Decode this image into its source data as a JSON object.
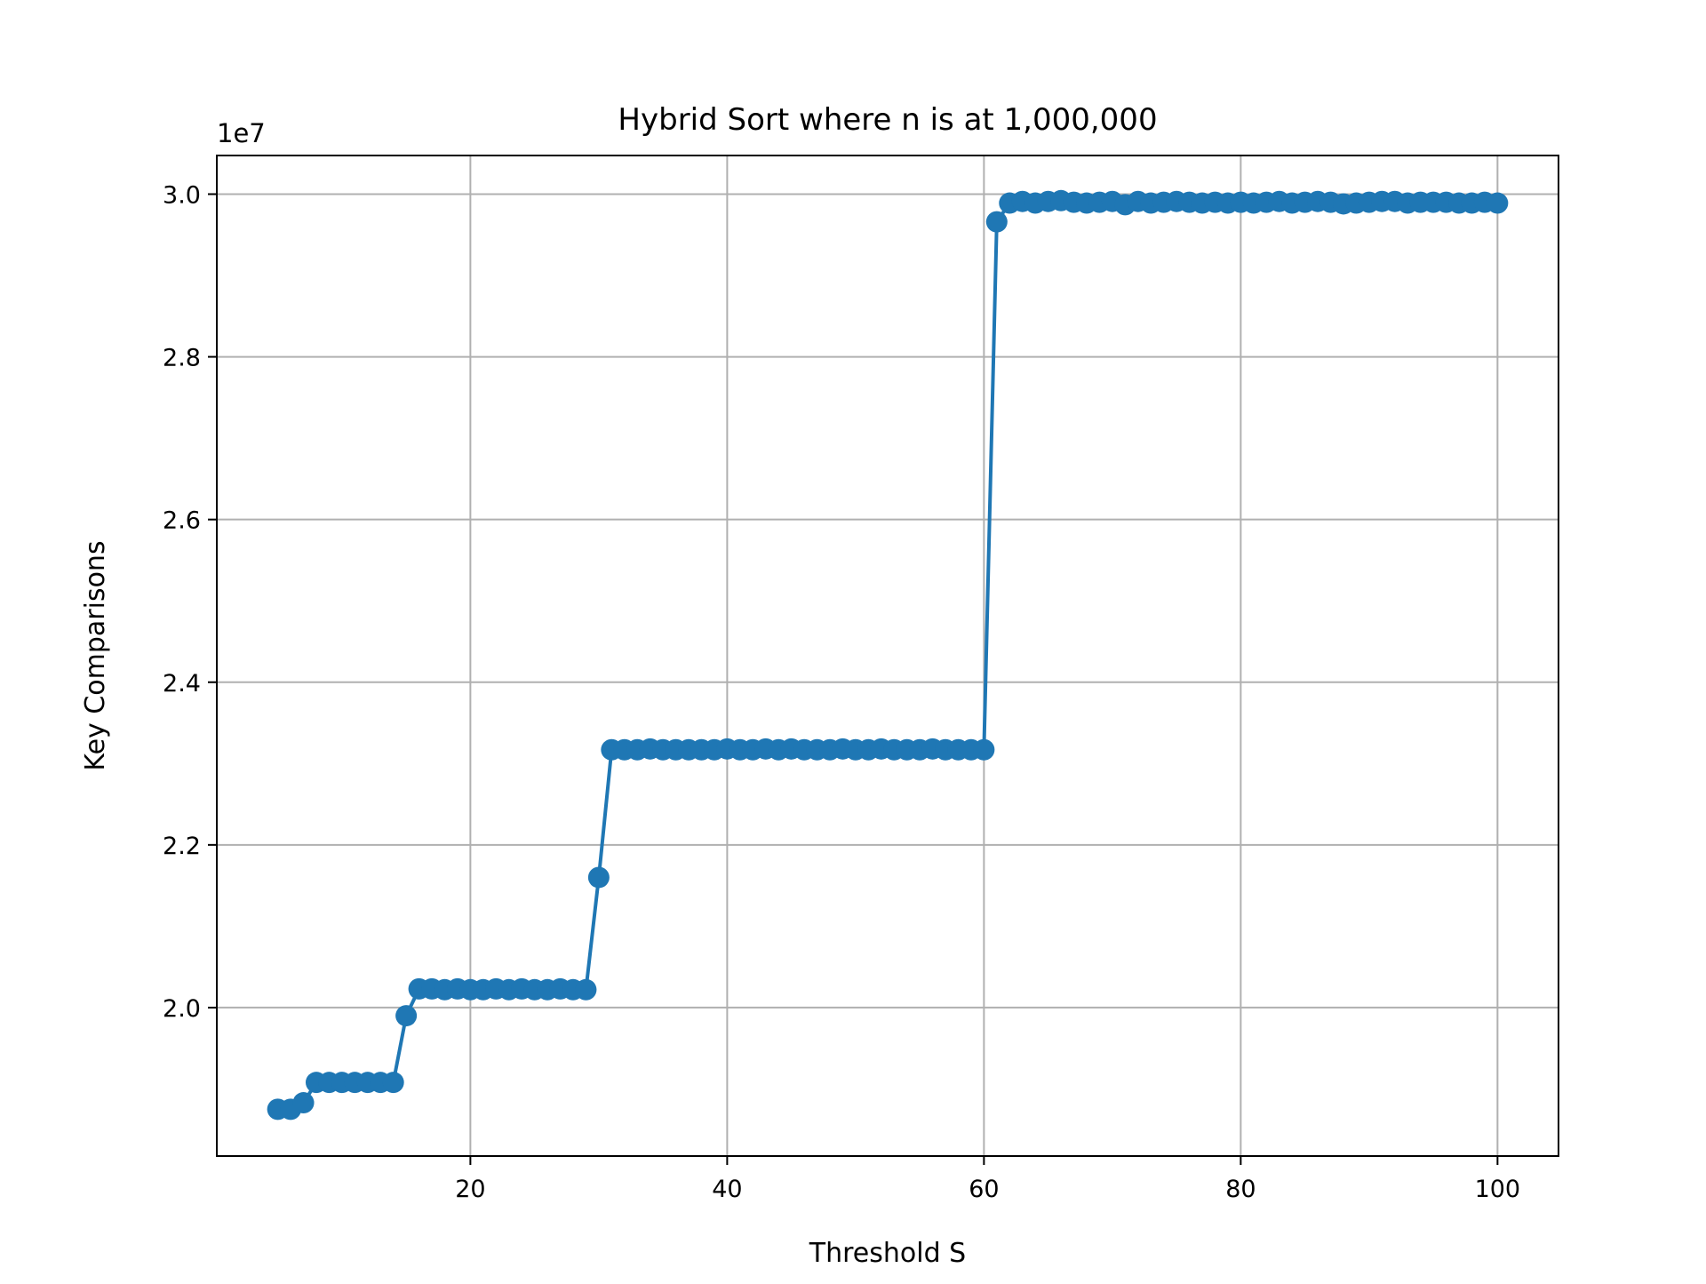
{
  "chart_data": {
    "type": "line",
    "title": "Hybrid Sort where n is at 1,000,000",
    "xlabel": "Threshold S",
    "ylabel": "Key Comparisons",
    "y_offset_label": "1e7",
    "xlim": [
      0.25,
      104.75
    ],
    "ylim": [
      18175000,
      30475000
    ],
    "x_ticks": [
      20,
      40,
      60,
      80,
      100
    ],
    "x_tick_labels": [
      "20",
      "40",
      "60",
      "80",
      "100"
    ],
    "y_ticks": [
      20000000,
      22000000,
      24000000,
      26000000,
      28000000,
      30000000
    ],
    "y_tick_labels": [
      "2.0",
      "2.2",
      "2.4",
      "2.6",
      "2.8",
      "3.0"
    ],
    "grid": true,
    "colors": {
      "series": "#1f77b4",
      "grid": "#b0b0b0",
      "frame": "#000000"
    },
    "series": [
      {
        "marker": "circle",
        "x": [
          5,
          6,
          7,
          8,
          9,
          10,
          11,
          12,
          13,
          14,
          15,
          16,
          17,
          18,
          19,
          20,
          21,
          22,
          23,
          24,
          25,
          26,
          27,
          28,
          29,
          30,
          31,
          32,
          33,
          34,
          35,
          36,
          37,
          38,
          39,
          40,
          41,
          42,
          43,
          44,
          45,
          46,
          47,
          48,
          49,
          50,
          51,
          52,
          53,
          54,
          55,
          56,
          57,
          58,
          59,
          60,
          61,
          62,
          63,
          64,
          65,
          66,
          67,
          68,
          69,
          70,
          71,
          72,
          73,
          74,
          75,
          76,
          77,
          78,
          79,
          80,
          81,
          82,
          83,
          84,
          85,
          86,
          87,
          88,
          89,
          90,
          91,
          92,
          93,
          94,
          95,
          96,
          97,
          98,
          99,
          100
        ],
        "y": [
          18750000,
          18750000,
          18830000,
          19080000,
          19080000,
          19080000,
          19080000,
          19080000,
          19080000,
          19080000,
          19900000,
          20230000,
          20230000,
          20220000,
          20230000,
          20220000,
          20220000,
          20230000,
          20220000,
          20230000,
          20220000,
          20220000,
          20230000,
          20220000,
          20220000,
          21600000,
          23170000,
          23170000,
          23170000,
          23180000,
          23170000,
          23170000,
          23170000,
          23170000,
          23170000,
          23180000,
          23170000,
          23170000,
          23180000,
          23170000,
          23180000,
          23170000,
          23170000,
          23170000,
          23180000,
          23170000,
          23170000,
          23180000,
          23170000,
          23170000,
          23170000,
          23180000,
          23170000,
          23170000,
          23170000,
          23170000,
          29660000,
          29890000,
          29910000,
          29890000,
          29910000,
          29920000,
          29900000,
          29890000,
          29900000,
          29910000,
          29870000,
          29910000,
          29890000,
          29900000,
          29910000,
          29900000,
          29890000,
          29900000,
          29890000,
          29900000,
          29890000,
          29900000,
          29910000,
          29890000,
          29900000,
          29910000,
          29900000,
          29880000,
          29890000,
          29900000,
          29910000,
          29910000,
          29890000,
          29900000,
          29900000,
          29900000,
          29890000,
          29890000,
          29900000,
          29890000
        ]
      }
    ]
  }
}
